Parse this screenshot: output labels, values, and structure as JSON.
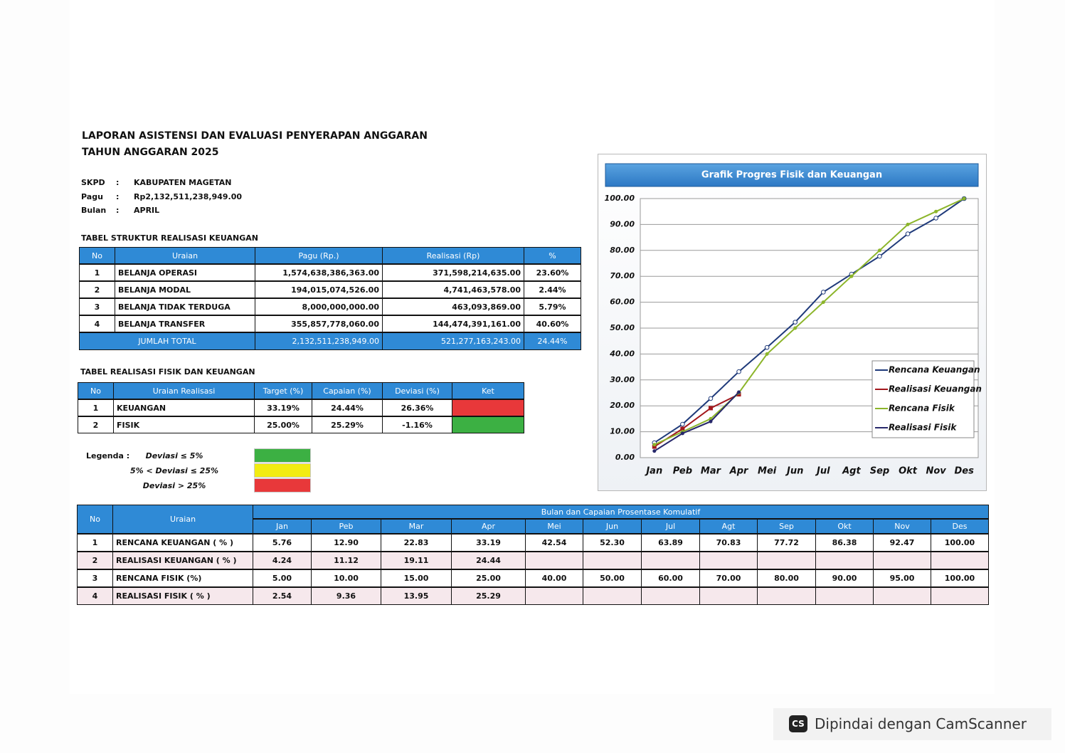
{
  "header": {
    "title": "LAPORAN ASISTENSI DAN EVALUASI PENYERAPAN ANGGARAN",
    "subtitle": "TAHUN ANGGARAN 2025"
  },
  "info": [
    {
      "label": "SKPD",
      "separator": ":",
      "value": "KABUPATEN MAGETAN"
    },
    {
      "label": "Pagu",
      "separator": ":",
      "value": "Rp2,132,511,238,949.00"
    },
    {
      "label": "Bulan",
      "separator": ":",
      "value": "APRIL"
    }
  ],
  "table1": {
    "title": "TABEL STRUKTUR REALISASI KEUANGAN",
    "columns": [
      "No",
      "Uraian",
      "Pagu (Rp.)",
      "Realisasi (Rp)",
      "%"
    ],
    "rows": [
      [
        "1",
        "BELANJA OPERASI",
        "1,574,638,386,363.00",
        "371,598,214,635.00",
        "23.60%"
      ],
      [
        "2",
        "BELANJA MODAL",
        "194,015,074,526.00",
        "4,741,463,578.00",
        "2.44%"
      ],
      [
        "3",
        "BELANJA TIDAK TERDUGA",
        "8,000,000,000.00",
        "463,093,869.00",
        "5.79%"
      ],
      [
        "4",
        "BELANJA TRANSFER",
        "355,857,778,060.00",
        "144,474,391,161.00",
        "40.60%"
      ]
    ],
    "total": [
      "JUMLAH TOTAL",
      "2,132,511,238,949.00",
      "521,277,163,243.00",
      "24.44%"
    ]
  },
  "table2": {
    "title": "TABEL REALISASI FISIK DAN KEUANGAN",
    "columns": [
      "No",
      "Uraian Realisasi",
      "Target (%)",
      "Capaian (%)",
      "Deviasi (%)",
      "Ket"
    ],
    "rows": [
      [
        "1",
        "KEUANGAN",
        "33.19%",
        "24.44%",
        "26.36%"
      ],
      [
        "2",
        "FISIK",
        "25.00%",
        "25.29%",
        "-1.16%"
      ]
    ],
    "status_colors": [
      "#e8383a",
      "#3cb043"
    ]
  },
  "legend": {
    "title": "Legenda :",
    "items": [
      {
        "label": "Deviasi ≤ 5%",
        "color": "#3cb043"
      },
      {
        "label": "5% < Deviasi ≤ 25%",
        "color": "#f2ec12"
      },
      {
        "label": "Deviasi > 25%",
        "color": "#e8383a"
      }
    ]
  },
  "table3": {
    "columns": [
      "No",
      "Uraian"
    ],
    "group_header": "Bulan dan Capaian Prosentase Komulatif",
    "rows": [
      {
        "no": "1",
        "label": "RENCANA KEUANGAN ( % )",
        "values": [
          "5.76",
          "12.90",
          "22.83",
          "33.19",
          "42.54",
          "52.30",
          "63.89",
          "70.83",
          "77.72",
          "86.38",
          "92.47",
          "100.00"
        ]
      },
      {
        "no": "2",
        "label": "REALISASI KEUANGAN ( % )",
        "values": [
          "4.24",
          "11.12",
          "19.11",
          "24.44"
        ]
      },
      {
        "no": "3",
        "label": "RENCANA FISIK (%)",
        "values": [
          "5.00",
          "10.00",
          "15.00",
          "25.00",
          "40.00",
          "50.00",
          "60.00",
          "70.00",
          "80.00",
          "90.00",
          "95.00",
          "100.00"
        ]
      },
      {
        "no": "4",
        "label": "REALISASI FISIK ( % )",
        "values": [
          "2.54",
          "9.36",
          "13.95",
          "25.29"
        ]
      }
    ]
  },
  "chart_data": {
    "type": "line",
    "title": "Grafik Progres Fisik dan Keuangan",
    "categories": [
      "Jan",
      "Peb",
      "Mar",
      "Apr",
      "Mei",
      "Jun",
      "Jul",
      "Agt",
      "Sep",
      "Okt",
      "Nov",
      "Des"
    ],
    "series": [
      {
        "name": "Rencana Keuangan",
        "color": "#1f3a7a",
        "values": [
          5.76,
          12.9,
          22.83,
          33.19,
          42.54,
          52.3,
          63.89,
          70.83,
          77.72,
          86.38,
          92.47,
          100
        ]
      },
      {
        "name": "Realisasi Keuangan",
        "color": "#a3171c",
        "values": [
          4.24,
          11.12,
          19.11,
          24.44,
          null,
          null,
          null,
          null,
          null,
          null,
          null,
          null
        ]
      },
      {
        "name": "Rencana Fisik",
        "color": "#8cb52a",
        "values": [
          5,
          10,
          15,
          25,
          40,
          50,
          60,
          70,
          80,
          90,
          95,
          100
        ]
      },
      {
        "name": "Realisasi Fisik",
        "color": "#27286b",
        "values": [
          2.54,
          9.36,
          13.95,
          25.29,
          null,
          null,
          null,
          null,
          null,
          null,
          null,
          null
        ]
      }
    ],
    "ylim": [
      0,
      100
    ],
    "yticks": [
      {
        "value": 0,
        "label": "0.00"
      },
      {
        "value": 10,
        "label": "10.00"
      },
      {
        "value": 20,
        "label": "20.00"
      },
      {
        "value": 30,
        "label": "30.00"
      },
      {
        "value": 40,
        "label": "40.00"
      },
      {
        "value": 50,
        "label": "50.00"
      },
      {
        "value": 60,
        "label": "60.00"
      },
      {
        "value": 70,
        "label": "70.00"
      },
      {
        "value": 80,
        "label": "80.00"
      },
      {
        "value": 90,
        "label": "90.00"
      },
      {
        "value": 100,
        "label": "100.00"
      }
    ],
    "grid": true,
    "legend": "right"
  },
  "watermark": {
    "icon": "CS",
    "text": "Dipindai dengan CamScanner"
  }
}
